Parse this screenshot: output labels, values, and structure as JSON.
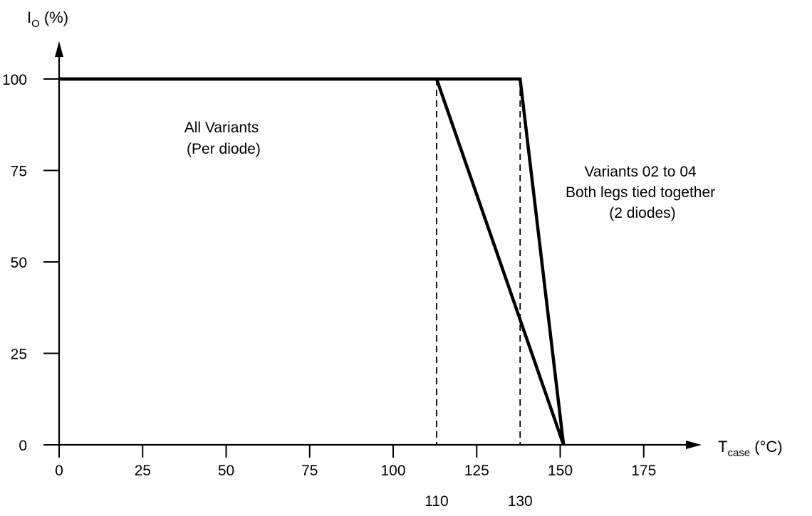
{
  "chart_data": {
    "type": "line",
    "title": "",
    "ylabel": {
      "main": "I",
      "sub": "O",
      "unit": " (%)"
    },
    "xlabel": {
      "main": "T",
      "sub": "case",
      "unit": " (°C)"
    },
    "x_ticks": [
      0,
      25,
      50,
      75,
      100,
      125,
      150,
      175
    ],
    "x_ticks_lower": [
      110,
      130
    ],
    "y_ticks": [
      0,
      25,
      50,
      75,
      100
    ],
    "xlim": [
      0,
      190
    ],
    "ylim": [
      0,
      100
    ],
    "grid": false,
    "reference_lines_x": [
      113,
      138
    ],
    "series": [
      {
        "points": [
          [
            0,
            100
          ],
          [
            113,
            100
          ],
          [
            151,
            0
          ]
        ]
      },
      {
        "points": [
          [
            0,
            100
          ],
          [
            138,
            100
          ],
          [
            151,
            0
          ]
        ]
      }
    ],
    "annotations": [
      {
        "lines": [
          "All Variants",
          "(Per diode)"
        ]
      },
      {
        "lines": [
          "Variants 02 to 04",
          "Both legs tied together",
          "(2 diodes)"
        ]
      }
    ],
    "colors": {
      "line": "#000000",
      "background": "#ffffff"
    }
  }
}
